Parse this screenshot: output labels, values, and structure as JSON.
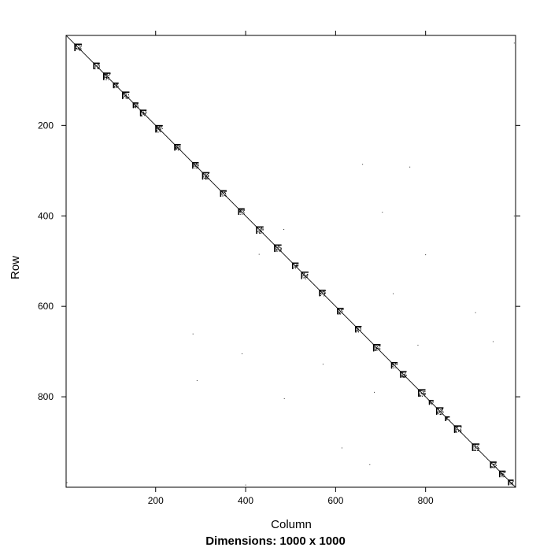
{
  "chart_data": {
    "type": "scatter",
    "title": "",
    "subtitle": "Dimensions: 1000 x 1000",
    "xlabel": "Column",
    "ylabel": "Row",
    "xlim": [
      1,
      1000
    ],
    "ylim": [
      1,
      1000
    ],
    "y_reversed": true,
    "x_ticks": [
      200,
      400,
      600,
      800
    ],
    "y_ticks": [
      200,
      400,
      600,
      800
    ],
    "grid": false,
    "legend": "none",
    "point_color": "#000000",
    "diagonal_blocks": [
      {
        "start": 20,
        "size": 16
      },
      {
        "start": 62,
        "size": 14
      },
      {
        "start": 84,
        "size": 16
      },
      {
        "start": 106,
        "size": 12
      },
      {
        "start": 126,
        "size": 16
      },
      {
        "start": 150,
        "size": 12
      },
      {
        "start": 166,
        "size": 14
      },
      {
        "start": 200,
        "size": 16
      },
      {
        "start": 242,
        "size": 14
      },
      {
        "start": 282,
        "size": 14
      },
      {
        "start": 304,
        "size": 16
      },
      {
        "start": 344,
        "size": 14
      },
      {
        "start": 384,
        "size": 14
      },
      {
        "start": 424,
        "size": 16
      },
      {
        "start": 464,
        "size": 16
      },
      {
        "start": 504,
        "size": 14
      },
      {
        "start": 524,
        "size": 16
      },
      {
        "start": 564,
        "size": 14
      },
      {
        "start": 604,
        "size": 14
      },
      {
        "start": 644,
        "size": 14
      },
      {
        "start": 684,
        "size": 16
      },
      {
        "start": 724,
        "size": 14
      },
      {
        "start": 744,
        "size": 14
      },
      {
        "start": 784,
        "size": 16
      },
      {
        "start": 808,
        "size": 10
      },
      {
        "start": 824,
        "size": 16
      },
      {
        "start": 844,
        "size": 10
      },
      {
        "start": 864,
        "size": 16
      },
      {
        "start": 904,
        "size": 16
      },
      {
        "start": 944,
        "size": 14
      },
      {
        "start": 964,
        "size": 14
      },
      {
        "start": 984,
        "size": 12
      }
    ],
    "scattered_points": [
      {
        "x": 660,
        "y": 286
      },
      {
        "x": 765,
        "y": 292
      },
      {
        "x": 704,
        "y": 392
      },
      {
        "x": 997,
        "y": 400
      },
      {
        "x": 485,
        "y": 430
      },
      {
        "x": 430,
        "y": 485
      },
      {
        "x": 800,
        "y": 486
      },
      {
        "x": 728,
        "y": 572
      },
      {
        "x": 911,
        "y": 614
      },
      {
        "x": 283,
        "y": 661
      },
      {
        "x": 950,
        "y": 678
      },
      {
        "x": 783,
        "y": 686
      },
      {
        "x": 392,
        "y": 705
      },
      {
        "x": 572,
        "y": 728
      },
      {
        "x": 292,
        "y": 764
      },
      {
        "x": 686,
        "y": 790
      },
      {
        "x": 486,
        "y": 804
      },
      {
        "x": 614,
        "y": 913
      },
      {
        "x": 676,
        "y": 950
      },
      {
        "x": 997,
        "y": 18
      },
      {
        "x": 3,
        "y": 990
      },
      {
        "x": 400,
        "y": 995
      }
    ]
  }
}
